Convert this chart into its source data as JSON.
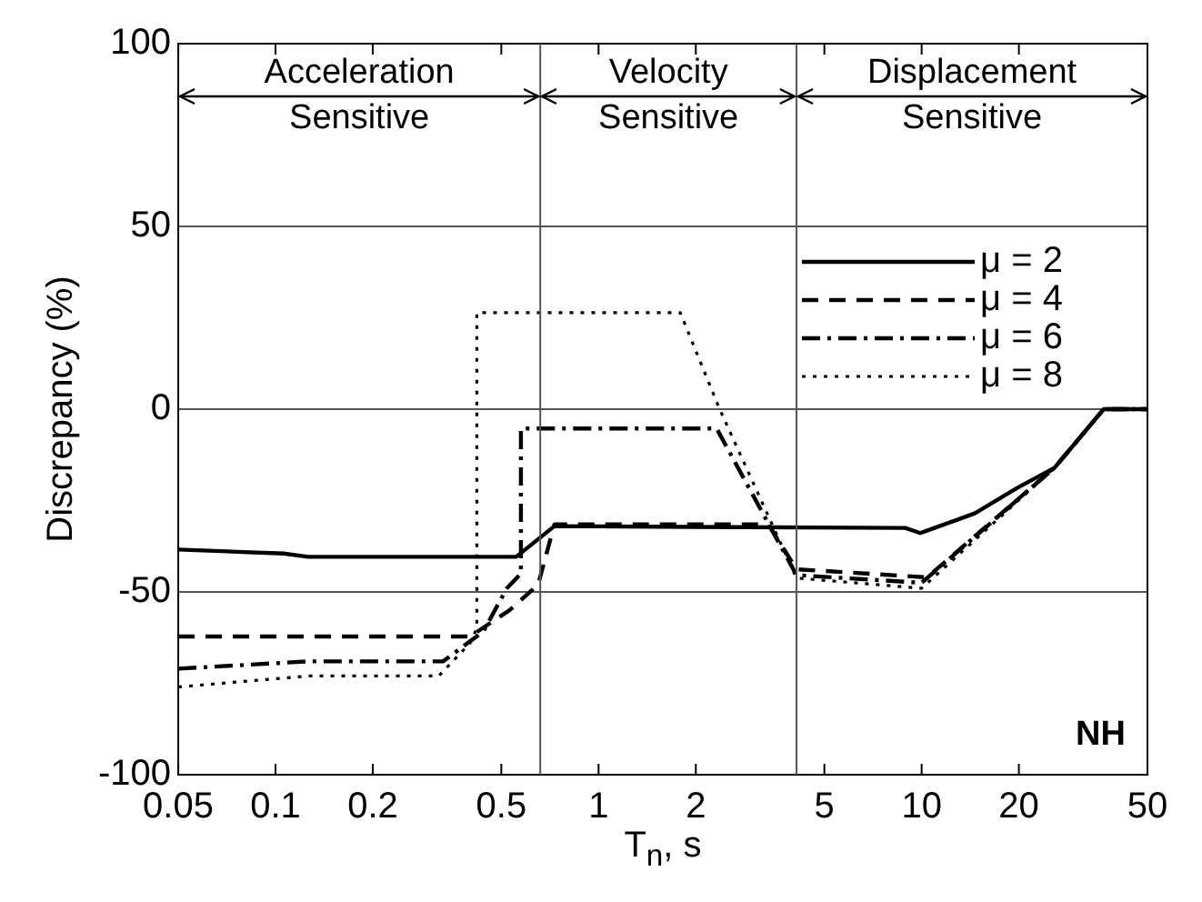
{
  "chart_data": {
    "type": "line",
    "xlabel": "T$_{n}$, s",
    "ylabel": "Discrepancy (%)",
    "log": "x",
    "xlim": [
      0.05,
      50
    ],
    "xticks": [
      0.05,
      0.1,
      0.2,
      0.5,
      1,
      2,
      5,
      10,
      20,
      50
    ],
    "ylim": [
      -100,
      100
    ],
    "yticks": [
      -100,
      -50,
      0,
      50,
      100
    ],
    "grid": "y",
    "legend": "top right",
    "marker": "none",
    "series": [
      {
        "name": "μ = 2",
        "color": "#000000",
        "line_style": "solid",
        "x": [
          0.05,
          0.106,
          0.126,
          0.556,
          0.73,
          8.9,
          9.9,
          14.6,
          19.7,
          25.8,
          36.6,
          50
        ],
        "values": [
          -38.4,
          -39.5,
          -40.4,
          -40.4,
          -32,
          -32.5,
          -33.9,
          -28.5,
          -21.6,
          -16,
          0,
          0
        ]
      },
      {
        "name": "μ = 4",
        "color": "#000000",
        "line_style": "dashed",
        "x": [
          0.05,
          0.4,
          0.53,
          0.65,
          0.73,
          3.35,
          4.1,
          10.4,
          25.8,
          36.6,
          50
        ],
        "values": [
          -62.2,
          -62.2,
          -55,
          -48,
          -31.5,
          -31.5,
          -43.8,
          -46,
          -16,
          0,
          0
        ]
      },
      {
        "name": "μ = 6",
        "color": "#000000",
        "line_style": "dashdot",
        "x": [
          0.05,
          0.126,
          0.33,
          0.44,
          0.52,
          0.575,
          0.575,
          2.32,
          4.1,
          10,
          25.8,
          36.6,
          50
        ],
        "values": [
          -71,
          -69,
          -69,
          -60.8,
          -49,
          -45,
          -5.3,
          -5.3,
          -45.4,
          -47.5,
          -16,
          0,
          0
        ]
      },
      {
        "name": "μ = 8",
        "color": "#000000",
        "line_style": "dotted",
        "x": [
          0.05,
          0.126,
          0.32,
          0.4,
          0.42,
          0.42,
          1.79,
          2.37,
          4.1,
          10,
          25.8,
          36.6,
          50
        ],
        "values": [
          -76,
          -73,
          -73,
          -64,
          -60,
          26.4,
          26.4,
          0,
          -46.2,
          -49,
          -16,
          0,
          0
        ]
      }
    ],
    "ref_lines": [
      {
        "axis": "x",
        "value": 0.66
      },
      {
        "axis": "x",
        "value": 4.1
      }
    ],
    "annotations": [
      "Acceleration Sensitive",
      "Velocity Sensitive",
      "Displacement Sensitive",
      "NH"
    ]
  }
}
